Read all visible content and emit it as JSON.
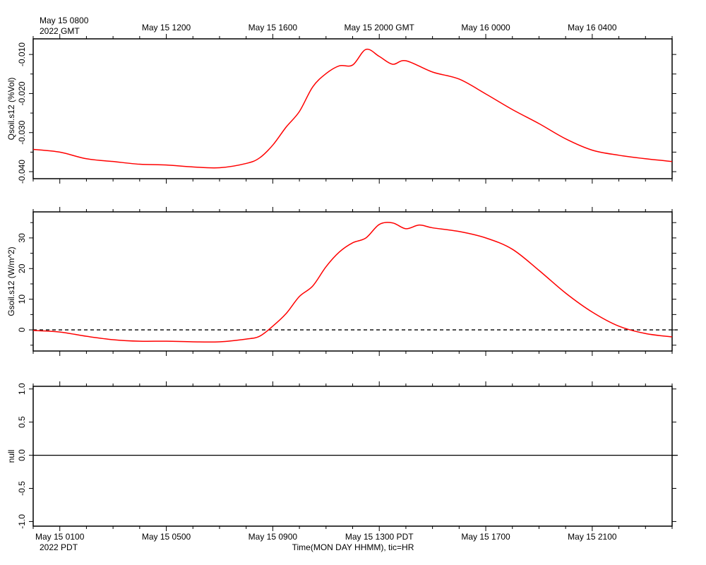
{
  "chart_data": [
    {
      "type": "line",
      "ylabel": "Qsoil.s12 (%Vol)",
      "xlim": [
        0,
        24
      ],
      "ylim": [
        -0.0418,
        -0.006
      ],
      "yticks": [
        {
          "value": -0.01,
          "label": "-0.010"
        },
        {
          "value": -0.02,
          "label": "-0.020"
        },
        {
          "value": -0.03,
          "label": "-0.030"
        },
        {
          "value": -0.04,
          "label": "-0.040"
        }
      ],
      "yminorticks": [
        -0.015,
        -0.025,
        -0.035
      ],
      "x2ticks": [
        {
          "value": 1,
          "label": "May 15 0800"
        },
        {
          "value": 5,
          "label": "May 15 1200"
        },
        {
          "value": 9,
          "label": "May 15 1600"
        },
        {
          "value": 13,
          "label": "May 15 2000 GMT"
        },
        {
          "value": 17,
          "label": "May 16 0000"
        },
        {
          "value": 21,
          "label": "May 16 0400"
        }
      ],
      "x2_note": "2022 GMT",
      "series": [
        {
          "color": "#ff0000",
          "x": [
            0,
            1,
            2,
            3,
            4,
            5,
            6,
            7,
            8,
            8.5,
            9,
            9.5,
            10,
            10.5,
            11,
            11.5,
            12,
            12.5,
            13,
            13.5,
            14,
            15,
            16,
            17,
            18,
            19,
            20,
            21,
            22,
            23,
            24
          ],
          "values": [
            -0.0343,
            -0.035,
            -0.0367,
            -0.0374,
            -0.0381,
            -0.0383,
            -0.0388,
            -0.039,
            -0.0379,
            -0.0365,
            -0.0332,
            -0.0286,
            -0.0246,
            -0.0183,
            -0.0149,
            -0.0129,
            -0.0127,
            -0.0087,
            -0.0105,
            -0.0125,
            -0.0116,
            -0.0145,
            -0.0163,
            -0.0201,
            -0.0241,
            -0.0277,
            -0.0316,
            -0.0345,
            -0.0358,
            -0.0367,
            -0.0374
          ]
        }
      ]
    },
    {
      "type": "line",
      "ylabel": "Gsoil.s12 (W/m^2)",
      "xlim": [
        0,
        24
      ],
      "ylim": [
        -6.9,
        38.5
      ],
      "yticks": [
        30,
        20,
        10,
        0
      ],
      "yminorticks": [
        35,
        25,
        15,
        5,
        -5
      ],
      "hline": {
        "value": 0,
        "style": "dashed"
      },
      "series": [
        {
          "color": "#ff0000",
          "x": [
            0,
            1,
            2,
            3,
            4,
            5,
            6,
            7,
            8,
            8.5,
            9,
            9.5,
            10,
            10.5,
            11,
            11.5,
            12,
            12.5,
            13,
            13.5,
            14,
            14.5,
            15,
            16,
            17,
            18,
            19,
            20,
            21,
            22,
            23,
            24
          ],
          "values": [
            -0.2,
            -0.7,
            -2.1,
            -3.2,
            -3.7,
            -3.7,
            -3.9,
            -3.9,
            -3.0,
            -2.1,
            1.2,
            5.3,
            10.9,
            14.3,
            20.6,
            25.4,
            28.4,
            30.0,
            34.4,
            34.9,
            33.0,
            34.2,
            33.3,
            32.1,
            30.0,
            26.3,
            19.4,
            12.0,
            5.8,
            1.2,
            -1.2,
            -2.3
          ]
        }
      ]
    },
    {
      "type": "line",
      "ylabel": "null",
      "xlim": [
        0,
        24
      ],
      "ylim": [
        -1.07,
        1.04
      ],
      "yticks": [
        {
          "value": 1,
          "label": "1.0"
        },
        0.5,
        {
          "value": 0,
          "label": "0.0"
        },
        -0.5,
        {
          "value": -1,
          "label": "-1.0"
        }
      ],
      "hline": {
        "value": 0,
        "style": "solid"
      },
      "series": [],
      "xticks": [
        {
          "value": 1,
          "label": "May 15 0100"
        },
        {
          "value": 5,
          "label": "May 15 0500"
        },
        {
          "value": 9,
          "label": "May 15 0900"
        },
        {
          "value": 13,
          "label": "May 15 1300 PDT"
        },
        {
          "value": 17,
          "label": "May 15 1700"
        },
        {
          "value": 21,
          "label": "May 15 2100"
        }
      ],
      "xminorticks": [
        0,
        2,
        3,
        4,
        6,
        7,
        8,
        10,
        11,
        12,
        14,
        15,
        16,
        18,
        19,
        20,
        22,
        23,
        24
      ],
      "x_note": "2022 PDT",
      "xlabel": "Time(MON DAY HHMM), tic=HR"
    }
  ]
}
